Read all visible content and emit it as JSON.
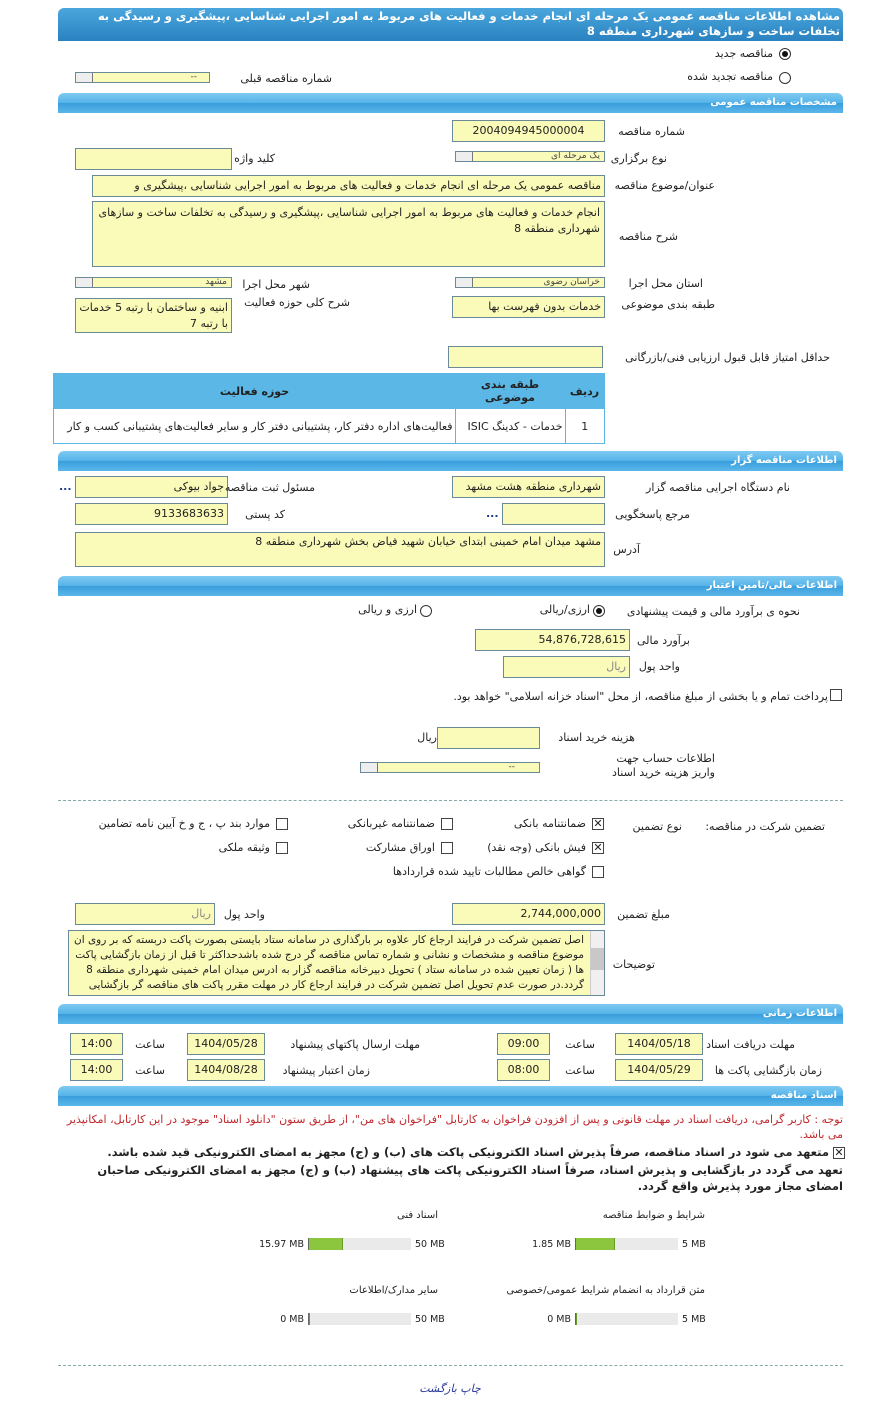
{
  "title": "مشاهده اطلاعات مناقصه عمومی یک مرحله ای انجام خدمات و فعالیت های مربوط به امور اجرایی شناسایی ،پیشگیری و رسیدگی به تخلفات ساخت و سازهای شهرداری منطقه 8",
  "tender_type": {
    "new_label": "مناقصه جدید",
    "renewed_label": "مناقصه تجدید شده",
    "selected": "new",
    "prev_number_label": "شماره مناقصه قبلی",
    "prev_number_value": "--"
  },
  "general": {
    "header": "مشخصات مناقصه عمومی",
    "number_label": "شماره مناقصه",
    "number_value": "2004094945000004",
    "holding_type_label": "نوع برگزاری",
    "holding_type_value": "یک مرحله ای",
    "keyword_label": "کلید واژه",
    "keyword_value": "",
    "subject_label": "عنوان/موضوع مناقصه",
    "subject_value": "مناقصه عمومی یک مرحله ای انجام خدمات و فعالیت های مربوط به امور اجرایی شناسایی ،پیشگیری و",
    "description_label": "شرح مناقصه",
    "description_value": "انجام خدمات و فعالیت های مربوط به امور اجرایی شناسایی ،پیشگیری و رسیدگی به تخلفات ساخت و سازهای شهرداری منطقه 8",
    "province_label": "استان محل اجرا",
    "province_value": "خراسان رضوی",
    "city_label": "شهر محل اجرا",
    "city_value": "مشهد",
    "category_label": "طبقه بندی موضوعی",
    "category_value": "خدمات بدون فهرست بها",
    "scope_label": "شرح کلی حوزه فعالیت",
    "scope_value": "ابنیه و ساختمان با رتبه  5 خدمات با رتبه 7",
    "min_score_label": "حداقل امتیاز قابل قبول ارزیابی فنی/بازرگانی",
    "min_score_value": "",
    "table": {
      "headers": [
        "ردیف",
        "طبقه بندی موضوعی",
        "حوزه فعالیت"
      ],
      "rows": [
        [
          "1",
          "خدمات - کدینگ ISIC",
          "فعالیت‌های اداره دفتر کار، پشتیبانی دفتر کار و سایر فعالیت‌های پشتیبانی کسب و کار"
        ]
      ]
    }
  },
  "organizer": {
    "header": "اطلاعات مناقصه گزار",
    "org_label": "نام دستگاه اجرایی مناقصه گزار",
    "org_value": "شهرداری منطقه هشت مشهد",
    "registrar_label": "مسئول ثبت مناقصه",
    "registrar_value": "جواد بیوکی",
    "more": "...",
    "reference_label": "مرجع پاسخگویی",
    "reference_value": "",
    "postal_label": "کد پستی",
    "postal_value": "9133683633",
    "address_label": "آدرس",
    "address_value": "مشهد میدان امام خمینی ابتدای خیابان شهید فیاض بخش شهرداری منطقه 8"
  },
  "finance": {
    "header": "اطلاعات مالی/تامین اعتبار",
    "method_label": "نحوه ی برآورد مالی و قیمت پیشنهادی",
    "opt_rial": "ارزی/ریالی",
    "opt_fx": "ارزی و ریالی",
    "selected": "rial",
    "estimate_label": "برآورد مالی",
    "estimate_value": "54,876,728,615",
    "currency_label": "واحد پول",
    "currency_value": "ریال",
    "treasury_text": "پرداخت تمام و یا بخشی از مبلغ مناقصه، از محل \"اسناد خزانه اسلامی\" خواهد بود.",
    "treasury_checked": false,
    "doc_fee_label": "هزینه خرید اسناد",
    "doc_fee_value": "",
    "doc_fee_unit": "ریال",
    "account_label": "اطلاعات حساب جهت واریز هزینه خرید اسناد",
    "account_value": "--"
  },
  "guarantee": {
    "label": "تضمین شرکت در مناقصه:",
    "type_label": "نوع تضمین",
    "options": [
      {
        "label": "ضمانتنامه بانکی",
        "checked": true
      },
      {
        "label": "ضمانتنامه غیربانکی",
        "checked": false
      },
      {
        "label": "موارد بند پ ، ج و خ آیین نامه تضامین",
        "checked": false
      },
      {
        "label": "فیش بانکی (وجه نقد)",
        "checked": true
      },
      {
        "label": "اوراق مشارکت",
        "checked": false
      },
      {
        "label": "وثیقه ملکی",
        "checked": false
      },
      {
        "label": "گواهی خالص مطالبات تایید شده قراردادها",
        "checked": false
      }
    ],
    "amount_label": "مبلغ تضمین",
    "amount_value": "2,744,000,000",
    "currency_label": "واحد پول",
    "currency_value": "ریال",
    "notes_label": "توضیحات",
    "notes_value": "اصل تضمین شرکت در فرایند ارجاع کار علاوه بر بارگذاری در سامانه ستاد بایستی بصورت پاکت دربسته که بر روی ان موضوع مناقصه و مشخصات و نشانی و شماره تماس مناقصه گر درج شده باشدحداکثر تا قبل از زمان بازگشایی پاکت ها ( زمان تعیین شده در سامانه ستاد ) تحویل دبیرخانه مناقصه گزار به ادرس میدان امام خمینی شهرداری منطقه 8  گردد.در صورت عدم تحویل اصل تضمین شرکت در فرایند ارجاع کار در مهلت مقرر پاکت های مناقصه گر بازگشایی نخواهد شد."
  },
  "timing": {
    "header": "اطلاعات زمانی",
    "time_label": "ساعت",
    "doc_deadline_label": "مهلت دریافت اسناد",
    "doc_deadline_date": "1404/05/18",
    "doc_deadline_time": "09:00",
    "submit_deadline_label": "مهلت ارسال پاکتهای پیشنهاد",
    "submit_deadline_date": "1404/05/28",
    "submit_deadline_time": "14:00",
    "opening_label": "زمان بازگشایی پاکت ها",
    "opening_date": "1404/05/29",
    "opening_time": "08:00",
    "validity_label": "زمان اعتبار پیشنهاد",
    "validity_date": "1404/08/28",
    "validity_time": "14:00"
  },
  "documents": {
    "header": "اسناد مناقصه",
    "notice": "توجه : کاربر گرامی، دریافت اسناد در مهلت قانونی و پس از افزودن فراخوان به کارتابل \"فراخوان های من\"، از طریق ستون \"دانلود اسناد\" موجود در این کارتابل، امکانپذیر می باشد.",
    "commit1": "متعهد می شود در اسناد مناقصه، صرفاً پذیرش اسناد الکترونیکی پاکت های (ب) و (ج) مجهز به امضای الکترونیکی قید شده باشد.",
    "commit2": "تعهد می گردد در بازگشایی و پذیرش اسناد، صرفاً اسناد الکترونیکی پاکت های پیشنهاد (ب) و (ج) مجهز به امضای الکترونیکی صاحبان امضای مجاز مورد پذیرش واقع گردد.",
    "files": [
      {
        "label": "شرایط و ضوابط مناقصه",
        "size": "1.85 MB",
        "max": "5 MB",
        "fraction": 0.37
      },
      {
        "label": "اسناد فنی",
        "size": "15.97 MB",
        "max": "50 MB",
        "fraction": 0.32
      },
      {
        "label": "متن قرارداد به انضمام شرایط عمومی/خصوصی",
        "size": "0 MB",
        "max": "5 MB",
        "fraction": 0
      },
      {
        "label": "سایر مدارک/اطلاعات",
        "size": "0 MB",
        "max": "50 MB",
        "fraction": 0
      }
    ]
  },
  "footer": {
    "print": "چاپ",
    "back": "بازگشت"
  }
}
